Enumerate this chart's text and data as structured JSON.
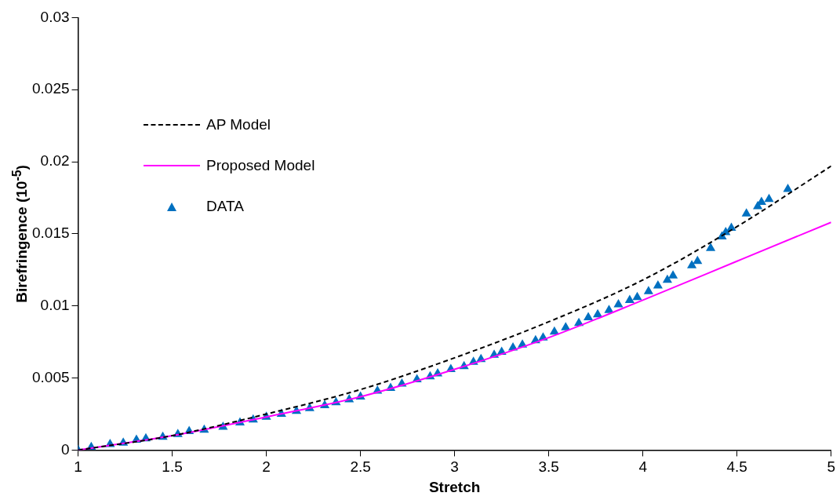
{
  "chart_data": {
    "type": "scatter",
    "xlabel": "Stretch",
    "ylabel": "Birefringence (10$^{-5}$)",
    "xlim": [
      1,
      5
    ],
    "xticks": [
      1,
      1.5,
      2,
      2.5,
      3,
      3.5,
      4,
      4.5,
      5
    ],
    "ylim": [
      0,
      0.03
    ],
    "yticks": [
      0,
      0.005,
      0.01,
      0.015,
      0.02,
      0.025,
      0.03
    ],
    "grid": false,
    "legend": "top left",
    "series": [
      {
        "name": "AP Model",
        "type": "line",
        "line_style": "dashed",
        "marker": "none",
        "color": "#000000",
        "x": [
          1,
          1.5,
          2,
          2.5,
          3,
          3.5,
          4,
          4.5,
          5
        ],
        "values": [
          0,
          0.001,
          0.0025,
          0.0042,
          0.0064,
          0.0089,
          0.0118,
          0.0155,
          0.0197
        ]
      },
      {
        "name": "Proposed Model",
        "type": "line",
        "line_style": "solid",
        "marker": "none",
        "color": "#ff00ff",
        "x": [
          1,
          1.5,
          2,
          2.5,
          3,
          3.5,
          4,
          4.5,
          5
        ],
        "values": [
          0,
          0.001,
          0.0023,
          0.0037,
          0.0056,
          0.0078,
          0.0104,
          0.0131,
          0.0158
        ]
      },
      {
        "name": "DATA",
        "type": "scatter",
        "marker": "triangle",
        "color": "#0070c0",
        "x": [
          1.0,
          1.07,
          1.17,
          1.24,
          1.31,
          1.36,
          1.45,
          1.53,
          1.59,
          1.67,
          1.77,
          1.86,
          1.93,
          2.0,
          2.08,
          2.16,
          2.23,
          2.31,
          2.37,
          2.44,
          2.5,
          2.59,
          2.66,
          2.72,
          2.8,
          2.87,
          2.91,
          2.98,
          3.05,
          3.1,
          3.14,
          3.21,
          3.25,
          3.31,
          3.36,
          3.43,
          3.47,
          3.53,
          3.59,
          3.66,
          3.71,
          3.76,
          3.82,
          3.87,
          3.93,
          3.97,
          4.03,
          4.08,
          4.13,
          4.16,
          4.26,
          4.29,
          4.36,
          4.42,
          4.44,
          4.47,
          4.55,
          4.61,
          4.63,
          4.67,
          4.77
        ],
        "values": [
          0,
          0.0002,
          0.0004,
          0.0005,
          0.0007,
          0.0008,
          0.0009,
          0.0011,
          0.0013,
          0.0014,
          0.0016,
          0.0019,
          0.0021,
          0.0023,
          0.0025,
          0.0027,
          0.0029,
          0.0031,
          0.0033,
          0.0035,
          0.0037,
          0.0041,
          0.0043,
          0.0046,
          0.0049,
          0.0051,
          0.0053,
          0.0056,
          0.0058,
          0.0061,
          0.0063,
          0.0066,
          0.0068,
          0.0071,
          0.0073,
          0.0076,
          0.0078,
          0.0082,
          0.0085,
          0.0088,
          0.0092,
          0.0094,
          0.0097,
          0.0101,
          0.0104,
          0.0106,
          0.011,
          0.0114,
          0.0118,
          0.0121,
          0.0128,
          0.0131,
          0.014,
          0.0148,
          0.0151,
          0.0154,
          0.0164,
          0.0169,
          0.0172,
          0.0174,
          0.0181
        ]
      }
    ]
  }
}
